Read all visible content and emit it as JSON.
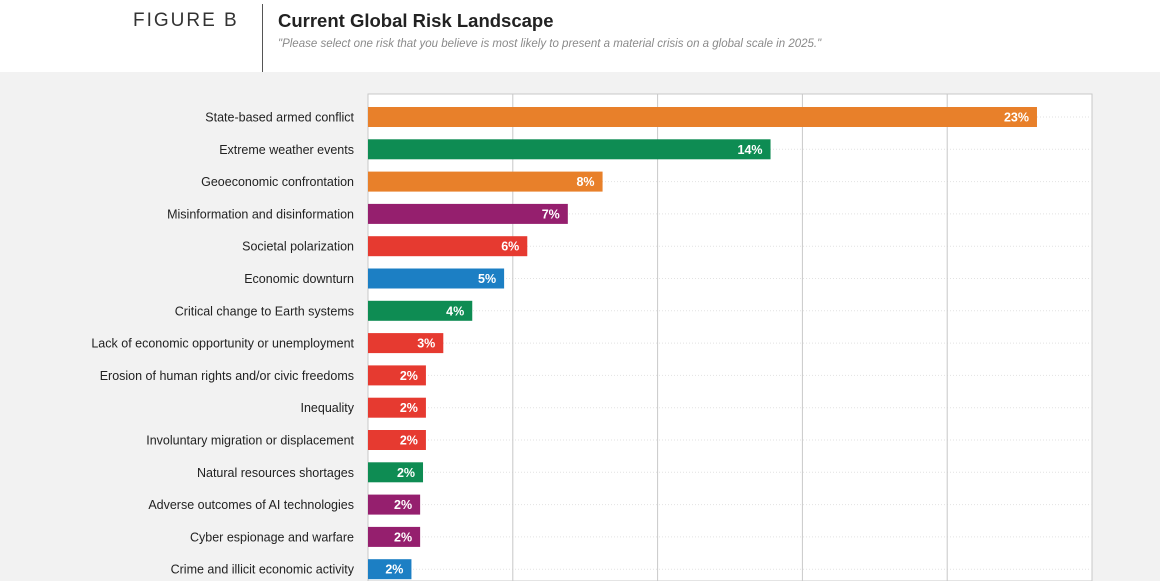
{
  "figure": {
    "label": "FIGURE B",
    "title": "Current Global Risk Landscape",
    "subtitle": "\"Please select one risk that you believe is most likely to present a material crisis on a global scale in 2025.\""
  },
  "colors": {
    "orange": "#e8802a",
    "green": "#0e8c53",
    "purple": "#951f6e",
    "red": "#e63a30",
    "blue": "#1c7fc4",
    "plot_background": "#ffffff",
    "page_background": "#f2f2f2"
  },
  "chart_data": {
    "type": "bar",
    "orientation": "horizontal",
    "title": "Current Global Risk Landscape",
    "xlabel": "",
    "ylabel": "",
    "xlim": [
      0,
      25
    ],
    "grid": true,
    "value_unit": "%",
    "categories": [
      "State-based armed conflict",
      "Extreme weather events",
      "Geoeconomic confrontation",
      "Misinformation and disinformation",
      "Societal polarization",
      "Economic downturn",
      "Critical change to Earth systems",
      "Lack of economic opportunity or unemployment",
      "Erosion of human rights and/or civic freedoms",
      "Inequality",
      "Involuntary migration or displacement",
      "Natural resources shortages",
      "Adverse outcomes of AI technologies",
      "Cyber espionage and warfare",
      "Crime and illicit economic activity"
    ],
    "values": [
      23.1,
      13.9,
      8.1,
      6.9,
      5.5,
      4.7,
      3.6,
      2.6,
      2.0,
      2.0,
      2.0,
      1.9,
      1.8,
      1.8,
      1.5
    ],
    "value_labels": [
      "23%",
      "14%",
      "8%",
      "7%",
      "6%",
      "5%",
      "4%",
      "3%",
      "2%",
      "2%",
      "2%",
      "2%",
      "2%",
      "2%",
      "2%"
    ],
    "bar_colors": [
      "orange",
      "green",
      "orange",
      "purple",
      "red",
      "blue",
      "green",
      "red",
      "red",
      "red",
      "red",
      "green",
      "purple",
      "purple",
      "blue"
    ]
  }
}
